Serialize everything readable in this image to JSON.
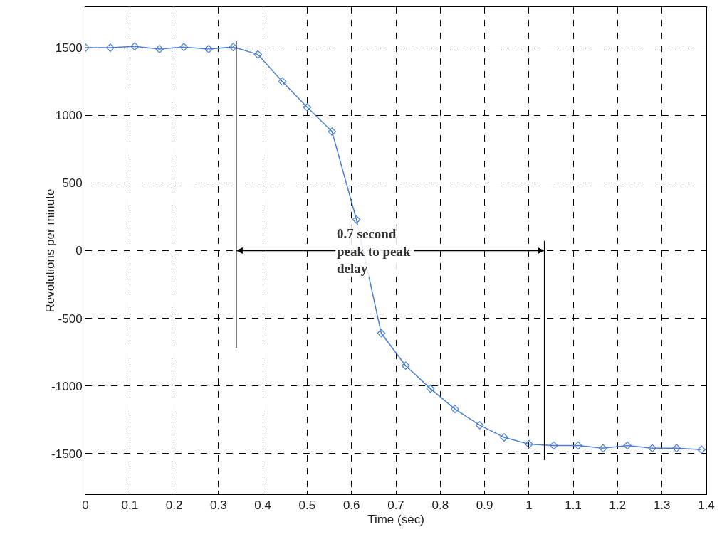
{
  "chart_data": {
    "type": "line",
    "xlabel": "Time (sec)",
    "ylabel": "Revolutions per minute",
    "x": [
      0,
      0.056,
      0.111,
      0.167,
      0.222,
      0.278,
      0.333,
      0.389,
      0.444,
      0.5,
      0.556,
      0.611,
      0.667,
      0.722,
      0.778,
      0.833,
      0.889,
      0.944,
      1.0,
      1.056,
      1.111,
      1.167,
      1.222,
      1.278,
      1.333,
      1.389
    ],
    "series": [
      {
        "color": "#4a7fd4",
        "values": [
          1500,
          1500,
          1510,
          1490,
          1505,
          1490,
          1505,
          1450,
          1250,
          1060,
          880,
          230,
          -610,
          -850,
          -1020,
          -1170,
          -1290,
          -1380,
          -1430,
          -1440,
          -1440,
          -1460,
          -1440,
          -1460,
          -1460,
          -1470
        ]
      }
    ],
    "xlim": [
      0,
      1.4
    ],
    "xticks": [
      0,
      0.1,
      0.2,
      0.3,
      0.4,
      0.5,
      0.6,
      0.7,
      0.8,
      0.9,
      1,
      1.1,
      1.2,
      1.3,
      1.4
    ],
    "ylim": [
      -1800,
      1800
    ],
    "yticks": [
      -1500,
      -1000,
      -500,
      0,
      500,
      1000,
      1500
    ],
    "grid": true,
    "marker": "diamond",
    "line_style": "solid",
    "ref_lines": [
      {
        "axis": "x",
        "value": 0.34,
        "color": "#000000"
      },
      {
        "axis": "x",
        "value": 1.035,
        "color": "#000000"
      }
    ],
    "annotations": [
      {
        "text": "0.7 second\npeak to peak\ndelay",
        "x": 0.34,
        "y": 0
      }
    ]
  }
}
